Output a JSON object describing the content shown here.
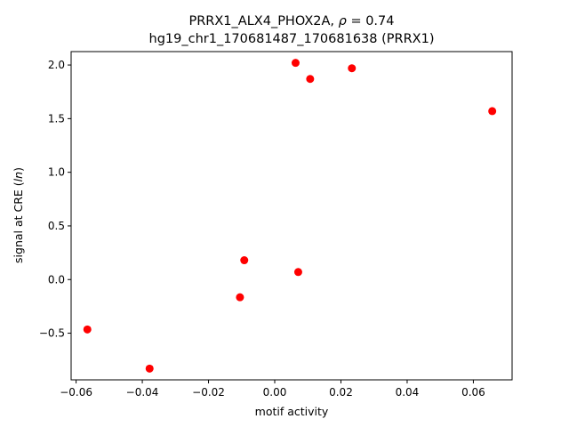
{
  "chart_data": {
    "type": "scatter",
    "title_line1_prefix": "PRRX1_ALX4_PHOX2A, ",
    "title_rho_symbol": "ρ",
    "title_rho_value": " = 0.74",
    "title_line2": "hg19_chr1_170681487_170681638 (PRRX1)",
    "xlabel": "motif activity",
    "ylabel_prefix": "signal at CRE (",
    "ylabel_unit": "ln",
    "ylabel_suffix": ")",
    "xlim": [
      -0.0615,
      0.0717
    ],
    "ylim": [
      -0.935,
      2.125
    ],
    "xticks": [
      -0.06,
      -0.04,
      -0.02,
      0.0,
      0.02,
      0.04,
      0.06
    ],
    "xtick_labels": [
      "−0.06",
      "−0.04",
      "−0.02",
      "0.00",
      "0.02",
      "0.04",
      "0.06"
    ],
    "yticks": [
      -0.5,
      0.0,
      0.5,
      1.0,
      1.5,
      2.0
    ],
    "ytick_labels": [
      "−0.5",
      "0.0",
      "0.5",
      "1.0",
      "1.5",
      "2.0"
    ],
    "marker_color": "#ff0000",
    "points": [
      {
        "x": -0.0566,
        "y": -0.465
      },
      {
        "x": -0.0378,
        "y": -0.83
      },
      {
        "x": -0.0105,
        "y": -0.165
      },
      {
        "x": -0.0092,
        "y": 0.18
      },
      {
        "x": 0.0063,
        "y": 2.02
      },
      {
        "x": 0.0071,
        "y": 0.07
      },
      {
        "x": 0.0107,
        "y": 1.87
      },
      {
        "x": 0.0233,
        "y": 1.97
      },
      {
        "x": 0.0657,
        "y": 1.57
      }
    ]
  }
}
